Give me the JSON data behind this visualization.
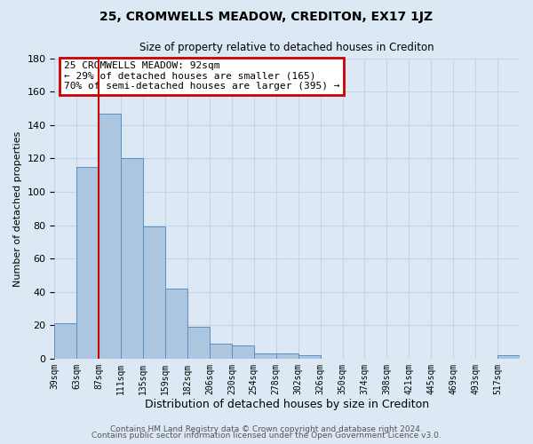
{
  "title": "25, CROMWELLS MEADOW, CREDITON, EX17 1JZ",
  "subtitle": "Size of property relative to detached houses in Crediton",
  "xlabel": "Distribution of detached houses by size in Crediton",
  "ylabel": "Number of detached properties",
  "footer_line1": "Contains HM Land Registry data © Crown copyright and database right 2024.",
  "footer_line2": "Contains public sector information licensed under the Open Government Licence v3.0.",
  "bin_labels": [
    "39sqm",
    "63sqm",
    "87sqm",
    "111sqm",
    "135sqm",
    "159sqm",
    "182sqm",
    "206sqm",
    "230sqm",
    "254sqm",
    "278sqm",
    "302sqm",
    "326sqm",
    "350sqm",
    "374sqm",
    "398sqm",
    "421sqm",
    "445sqm",
    "469sqm",
    "493sqm",
    "517sqm"
  ],
  "bar_values": [
    21,
    115,
    147,
    120,
    79,
    42,
    19,
    9,
    8,
    3,
    3,
    2,
    0,
    0,
    0,
    0,
    0,
    0,
    0,
    0,
    2
  ],
  "bar_color": "#adc6e0",
  "bar_edge_color": "#5b8ec4",
  "grid_color": "#c5d5e5",
  "background_color": "#dce8f4",
  "vline_color": "#cc0000",
  "annotation_box_text": "25 CROMWELLS MEADOW: 92sqm\n← 29% of detached houses are smaller (165)\n70% of semi-detached houses are larger (395) →",
  "annotation_box_color": "#cc0000",
  "ylim": [
    0,
    180
  ],
  "n_bins": 21,
  "vline_bin_index": 2,
  "footer_color": "#555555"
}
